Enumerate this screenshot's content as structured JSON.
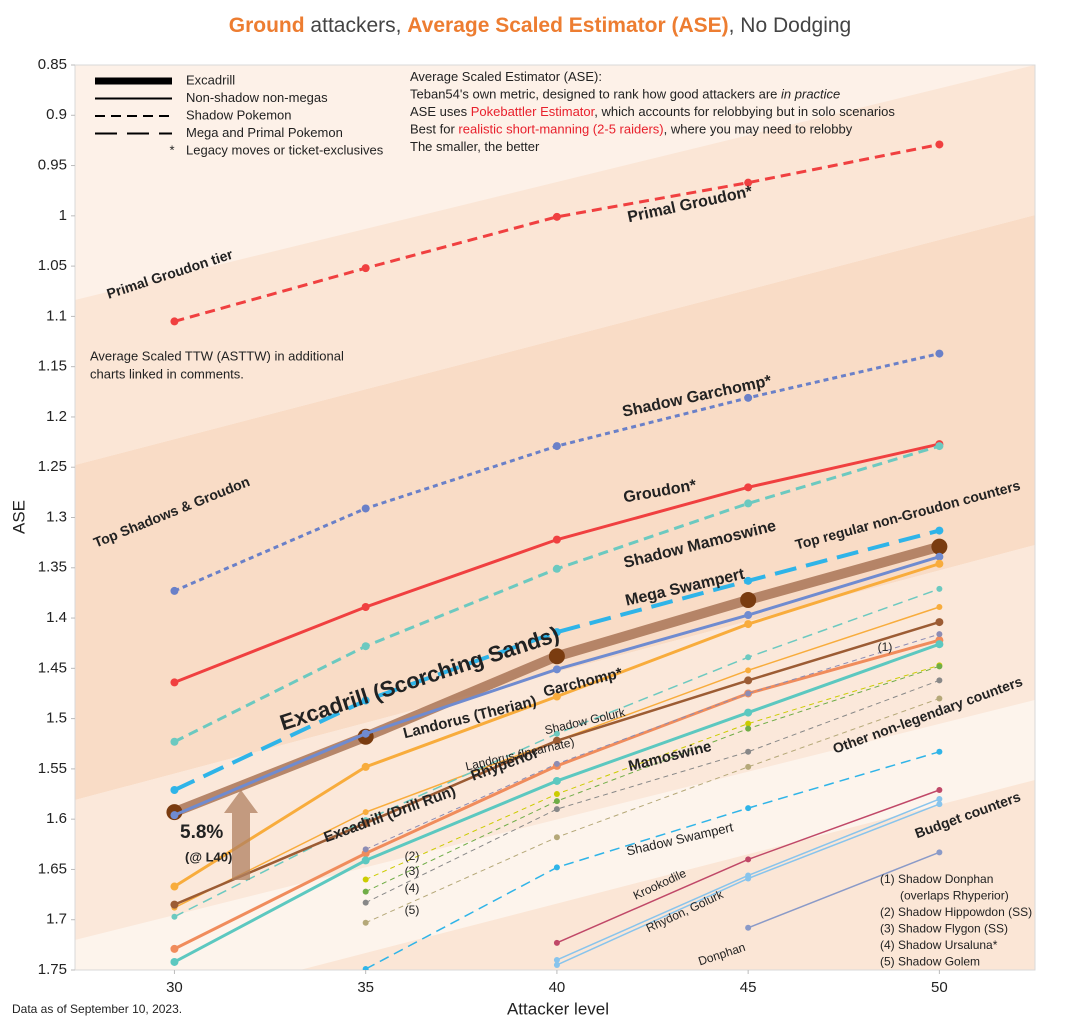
{
  "chart_data": {
    "type": "line",
    "title_parts": [
      {
        "text": "Ground",
        "style": "accent"
      },
      {
        "text": " attackers, ",
        "style": "normal"
      },
      {
        "text": "Average Scaled Estimator (ASE)",
        "style": "accent"
      },
      {
        "text": ", No Dodging",
        "style": "normal"
      }
    ],
    "x_label": "Attacker level",
    "y_label": "ASE",
    "x": [
      30,
      35,
      40,
      45,
      50
    ],
    "xlim": [
      27.4,
      52.5
    ],
    "xticks": [
      30,
      35,
      40,
      45,
      50
    ],
    "ylim": [
      0.85,
      1.75
    ],
    "y_reversed": true,
    "yticks": [
      0.85,
      0.9,
      0.95,
      1,
      1.05,
      1.1,
      1.15,
      1.2,
      1.25,
      1.3,
      1.35,
      1.4,
      1.45,
      1.5,
      1.55,
      1.6,
      1.65,
      1.7,
      1.75
    ],
    "grid": false,
    "series": [
      {
        "name": "Primal Groudon*",
        "color": "#f04040",
        "dash": "dash",
        "width": 3,
        "values": [
          1.105,
          1.052,
          1.001,
          0.967,
          0.929
        ]
      },
      {
        "name": "Shadow Garchomp*",
        "color": "#6a80c8",
        "dash": "dot",
        "width": 3,
        "values": [
          1.373,
          1.291,
          1.229,
          1.181,
          1.137
        ]
      },
      {
        "name": "Groudon*",
        "color": "#f04040",
        "dash": "solid",
        "width": 3,
        "values": [
          1.464,
          1.389,
          1.322,
          1.27,
          1.227
        ]
      },
      {
        "name": "Shadow Mamoswine",
        "color": "#6cc9c0",
        "dash": "dash",
        "width": 3,
        "values": [
          1.523,
          1.428,
          1.351,
          1.286,
          1.229
        ]
      },
      {
        "name": "Mega Swampert",
        "color": "#2fb4e8",
        "dash": "longdash",
        "width": 4,
        "values": [
          1.571,
          1.482,
          1.414,
          1.363,
          1.313
        ]
      },
      {
        "name": "Excadrill (Scorching Sands)",
        "color": "#a97456",
        "marker_color": "#7a3c10",
        "dash": "solid",
        "width": 10,
        "values": [
          1.593,
          1.518,
          1.438,
          1.382,
          1.329
        ]
      },
      {
        "name": "Garchomp*",
        "color": "#6f8bd0",
        "dash": "solid",
        "width": 3,
        "values": [
          1.596,
          1.515,
          1.451,
          1.397,
          1.339
        ]
      },
      {
        "name": "Landorus (Therian)",
        "color": "#f8ac3c",
        "dash": "solid",
        "width": 3,
        "values": [
          1.667,
          1.548,
          1.478,
          1.406,
          1.346
        ]
      },
      {
        "name": "Landorus (Incarnate)",
        "color": "#f8ac3c",
        "dash": "solid",
        "width": 1.5,
        "values": [
          1.688,
          1.593,
          1.522,
          1.452,
          1.389
        ]
      },
      {
        "name": "Shadow Golurk",
        "color": "#6cc9c0",
        "dash": "dash",
        "width": 1.5,
        "values": [
          1.697,
          1.601,
          1.515,
          1.439,
          1.371
        ]
      },
      {
        "name": "Excadrill (Drill Run)",
        "color": "#9c5c34",
        "dash": "solid",
        "width": 2.5,
        "values": [
          1.685,
          1.604,
          1.522,
          1.462,
          1.404
        ]
      },
      {
        "name": "Rhyperior",
        "color": "#f08c5c",
        "dash": "solid",
        "width": 3,
        "values": [
          1.729,
          1.634,
          1.547,
          1.475,
          1.422
        ]
      },
      {
        "name": "Mamoswine",
        "color": "#5cc8c0",
        "dash": "solid",
        "width": 3,
        "values": [
          1.742,
          1.641,
          1.562,
          1.494,
          1.426
        ]
      },
      {
        "name": "Shadow Swampert",
        "color": "#2fb4e8",
        "dash": "dash",
        "width": 1.5,
        "values": [
          null,
          1.749,
          1.648,
          1.589,
          1.533
        ]
      },
      {
        "name": "Krookodile",
        "color": "#c04868",
        "dash": "solid",
        "width": 1.5,
        "values": [
          null,
          null,
          1.723,
          1.64,
          1.571
        ]
      },
      {
        "name": "Rhydon, Golurk",
        "color": "#88c4ec",
        "dash": "solid",
        "width": 1.5,
        "values": [
          null,
          null,
          1.74,
          1.656,
          1.58
        ]
      },
      {
        "color": "#88c4ec",
        "dash": "solid",
        "width": 1.5,
        "values": [
          null,
          null,
          1.745,
          1.659,
          1.585
        ]
      },
      {
        "name": "Donphan",
        "color": "#8a9ac8",
        "dash": "solid",
        "width": 1.5,
        "values": [
          null,
          null,
          null,
          1.708,
          1.633
        ]
      },
      {
        "color": "#8c8cb4",
        "dash": "dot",
        "width": 1,
        "values": [
          null,
          1.63,
          1.545,
          1.475,
          1.416
        ]
      },
      {
        "color": "#cccc00",
        "dash": "dot",
        "width": 1,
        "values": [
          null,
          1.66,
          1.575,
          1.505,
          1.447
        ]
      },
      {
        "color": "#70ad47",
        "dash": "dot",
        "width": 1,
        "values": [
          null,
          1.672,
          1.582,
          1.51,
          1.448
        ]
      },
      {
        "color": "#888888",
        "dash": "dot",
        "width": 1,
        "values": [
          null,
          1.683,
          1.59,
          1.533,
          1.462
        ]
      },
      {
        "color": "#b5a878",
        "dash": "dot",
        "width": 1,
        "values": [
          null,
          1.703,
          1.618,
          1.548,
          1.48
        ]
      }
    ],
    "legend": [
      {
        "label": "Excadrill",
        "style": "thick"
      },
      {
        "label": "Non-shadow non-megas",
        "style": "solid"
      },
      {
        "label": "Shadow Pokemon",
        "style": "dash"
      },
      {
        "label": "Mega and Primal Pokemon",
        "style": "longdash"
      },
      {
        "label": "Legacy moves or ticket-exclusives",
        "symbol": "*"
      }
    ],
    "info_lines": [
      [
        {
          "text": "Average Scaled Estimator (ASE):",
          "style": "normal"
        }
      ],
      [
        {
          "text": "Teban54's own metric, designed to rank how good attackers are ",
          "style": "normal"
        },
        {
          "text": "in practice",
          "style": "italic"
        }
      ],
      [
        {
          "text": "ASE uses ",
          "style": "normal"
        },
        {
          "text": "Pokebattler Estimator",
          "style": "red"
        },
        {
          "text": ", which accounts for relobbying but in solo scenarios",
          "style": "normal"
        }
      ],
      [
        {
          "text": "Best for ",
          "style": "normal"
        },
        {
          "text": "realistic short-manning (2-5 raiders)",
          "style": "red"
        },
        {
          "text": ", where you may need to relobby",
          "style": "normal"
        }
      ],
      [
        {
          "text": "The smaller, the better",
          "style": "normal"
        }
      ]
    ],
    "tiers": [
      "Primal Groudon tier",
      "Top Shadows & Groudon",
      "Top regular non-Groudon counters",
      "Other non-legendary counters",
      "Budget counters"
    ],
    "notes": [
      "Average Scaled TTW (ASTTW) in additional",
      "charts linked in comments."
    ],
    "gain": "5.8%",
    "gain_note": "(@ L40)",
    "markers": [
      "(1)",
      "(2)",
      "(3)",
      "(4)",
      "(5)"
    ],
    "key": [
      "(1) Shadow Donphan",
      "(overlaps Rhyperior)",
      "(2) Shadow Hippowdon (SS)",
      "(3) Shadow Flygon (SS)",
      "(4) Shadow Ursaluna*",
      "(5) Shadow Golem"
    ],
    "footnote": "Data as of September 10, 2023."
  }
}
